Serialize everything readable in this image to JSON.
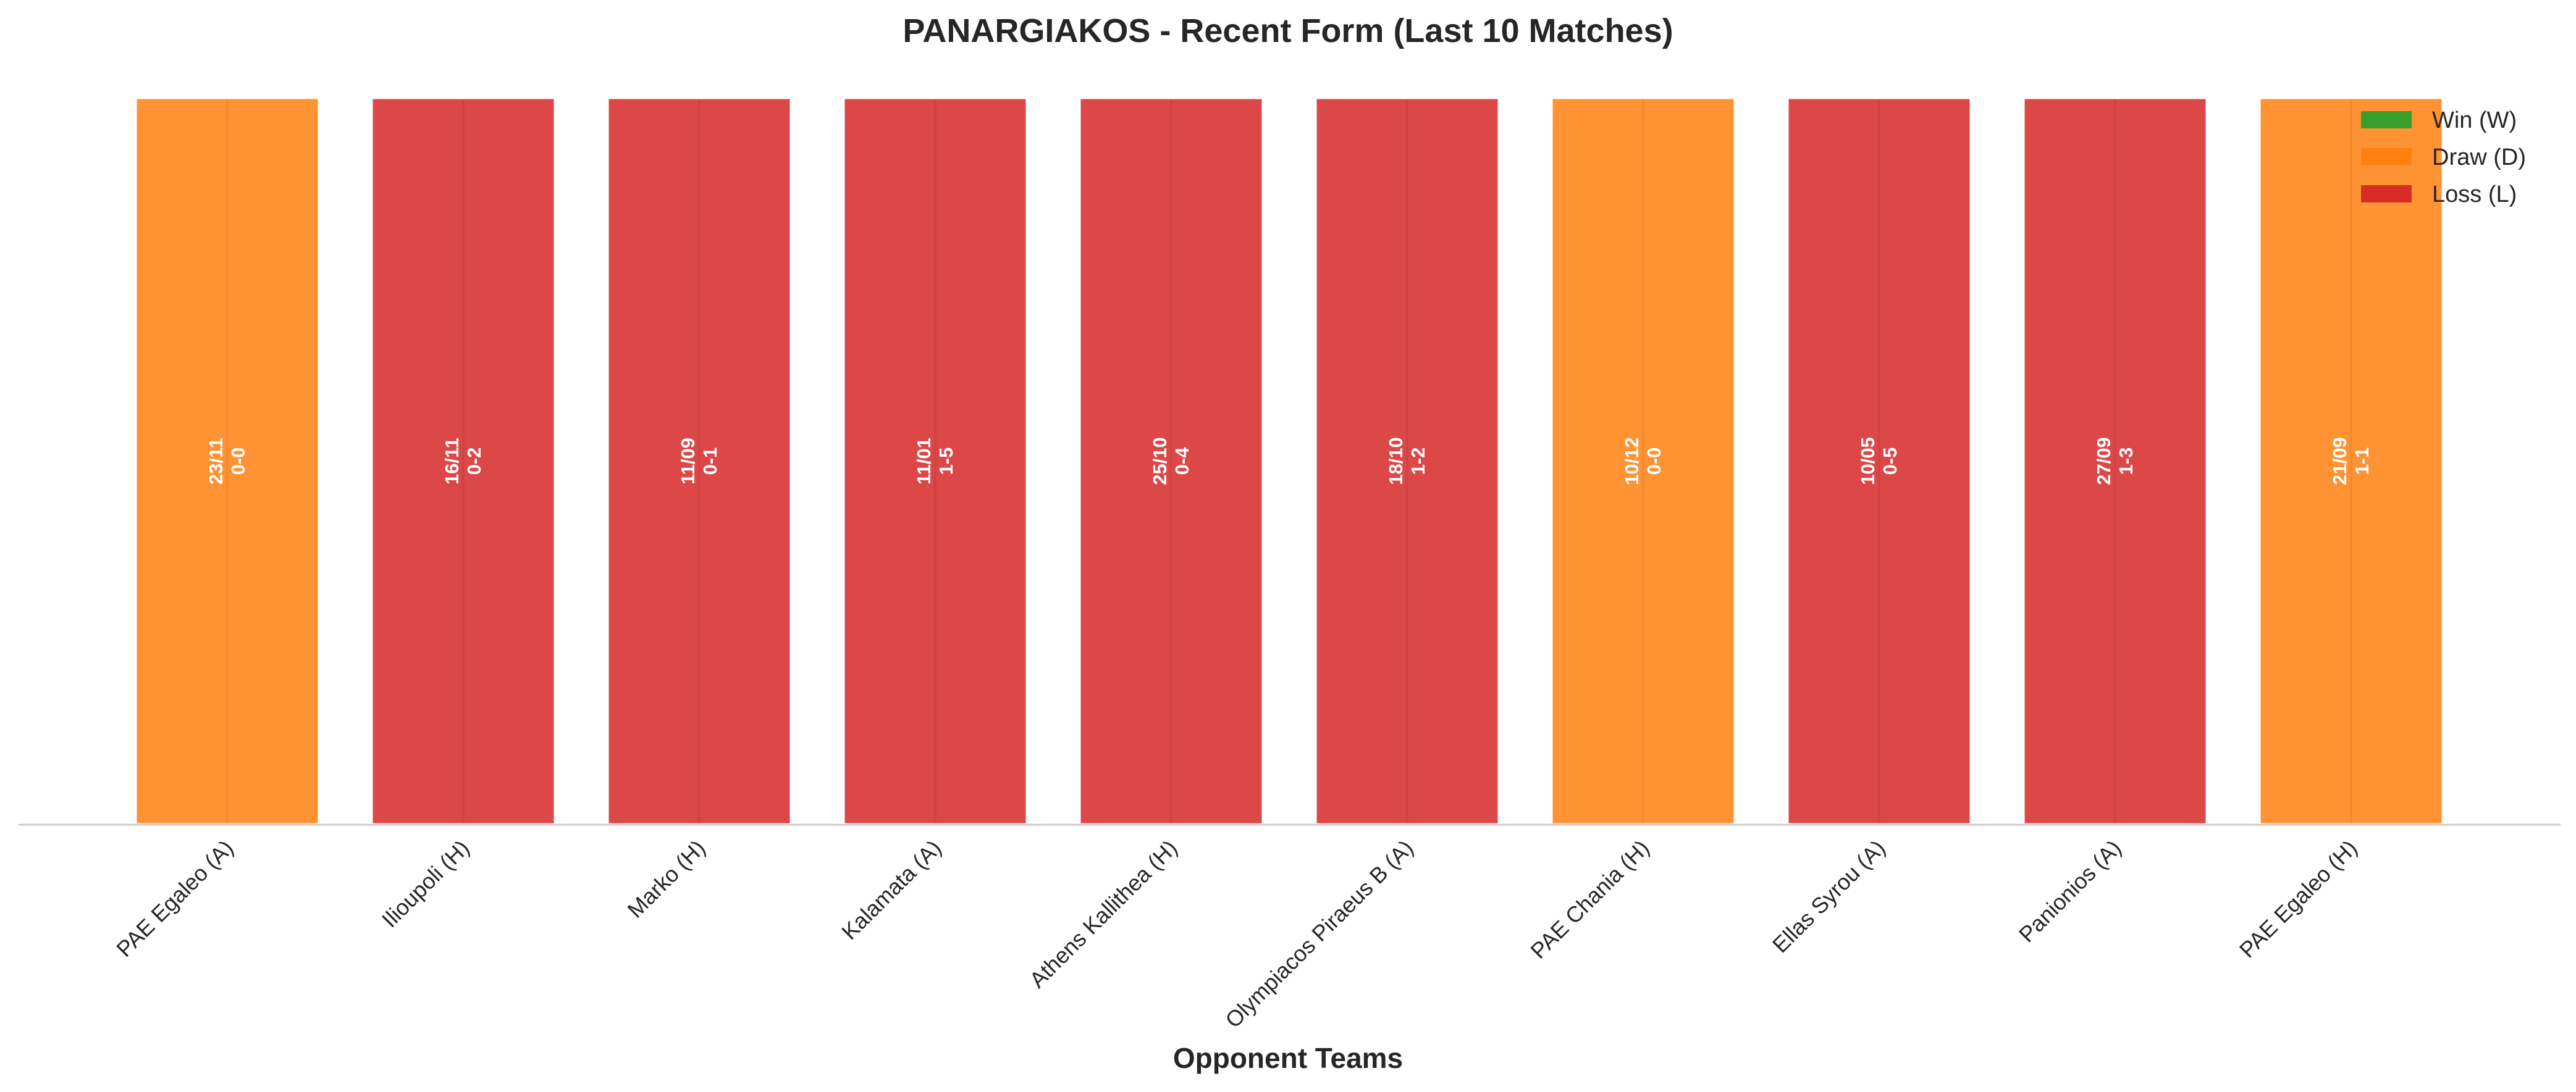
{
  "chart_data": {
    "type": "bar",
    "title": "PANARGIAKOS - Recent Form (Last 10 Matches)",
    "xlabel": "Opponent Teams",
    "ylabel": "",
    "grid": false,
    "legend_placement": "top-right",
    "categories": [
      "PAE Egaleo (A)",
      "Ilioupoli (H)",
      "Marko (H)",
      "Kalamata (A)",
      "Athens Kallithea (H)",
      "Olympiacos Piraeus B (A)",
      "PAE Chania (H)",
      "Ellas Syrou (A)",
      "Panionios (A)",
      "PAE Egaleo (H)"
    ],
    "values": [
      1,
      1,
      1,
      1,
      1,
      1,
      1,
      1,
      1,
      1
    ],
    "results": [
      "D",
      "L",
      "L",
      "L",
      "L",
      "L",
      "D",
      "L",
      "L",
      "D"
    ],
    "dates": [
      "23/11",
      "16/11",
      "11/09",
      "11/01",
      "25/10",
      "18/10",
      "10/12",
      "10/05",
      "27/09",
      "21/09"
    ],
    "scores": [
      "0-0",
      "0-2",
      "0-1",
      "1-5",
      "0-4",
      "1-2",
      "0-0",
      "0-5",
      "1-3",
      "1-1"
    ],
    "legend": [
      {
        "key": "W",
        "label": "Win (W)",
        "color": "#2ca02c"
      },
      {
        "key": "D",
        "label": "Draw (D)",
        "color": "#ff7f0e"
      },
      {
        "key": "L",
        "label": "Loss (L)",
        "color": "#d62728"
      }
    ],
    "colors": {
      "W": "#2ca02c",
      "D": "#ff7f0e",
      "L": "#d62728"
    }
  }
}
